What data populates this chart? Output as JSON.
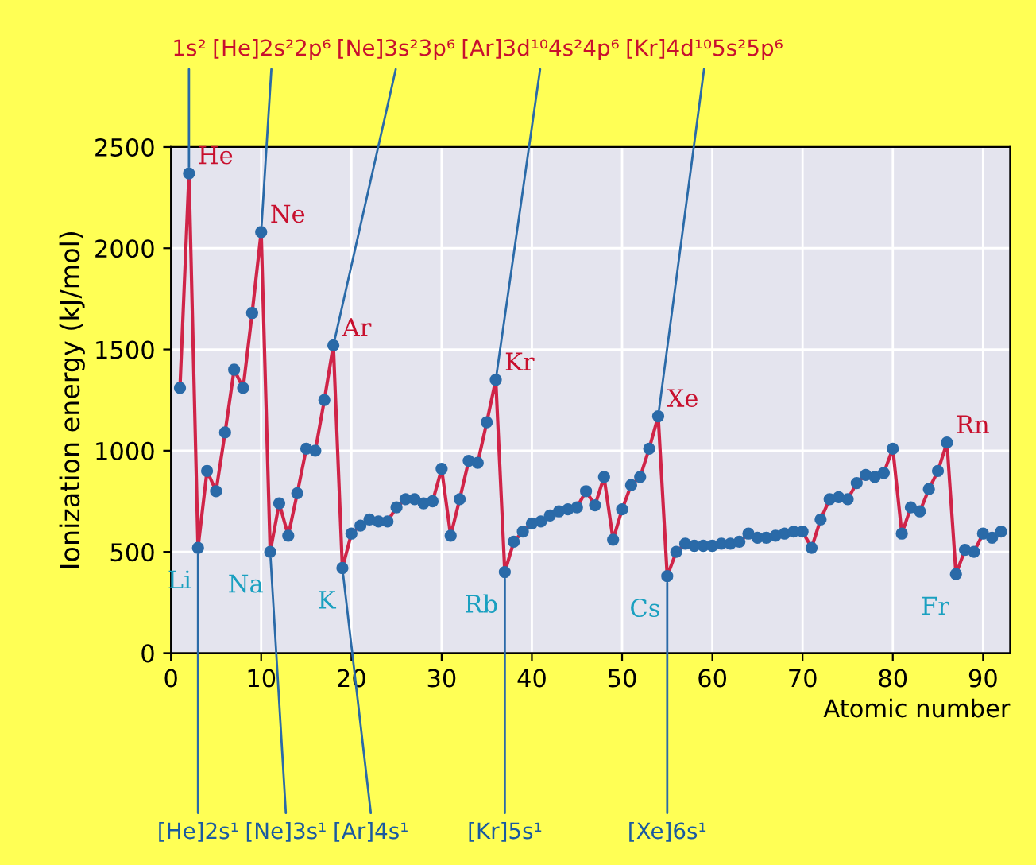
{
  "chart_data": {
    "type": "line",
    "xlabel": "Atomic number",
    "ylabel": "Ionization energy (kJ/mol)",
    "x": [
      1,
      2,
      3,
      4,
      5,
      6,
      7,
      8,
      9,
      10,
      11,
      12,
      13,
      14,
      15,
      16,
      17,
      18,
      19,
      20,
      21,
      22,
      23,
      24,
      25,
      26,
      27,
      28,
      29,
      30,
      31,
      32,
      33,
      34,
      35,
      36,
      37,
      38,
      39,
      40,
      41,
      42,
      43,
      44,
      45,
      46,
      47,
      48,
      49,
      50,
      51,
      52,
      53,
      54,
      55,
      56,
      57,
      58,
      59,
      60,
      61,
      62,
      63,
      64,
      65,
      66,
      67,
      68,
      69,
      70,
      71,
      72,
      73,
      74,
      75,
      76,
      77,
      78,
      79,
      80,
      81,
      82,
      83,
      84,
      85,
      86,
      87,
      88,
      89,
      90,
      91,
      92
    ],
    "series": [
      {
        "color": "#d02448",
        "values": [
          1310,
          2370,
          520,
          900,
          800,
          1090,
          1400,
          1310,
          1680,
          2080,
          500,
          740,
          580,
          790,
          1010,
          1000,
          1250,
          1520,
          420,
          590,
          630,
          660,
          650,
          650,
          720,
          760,
          760,
          740,
          750,
          910,
          580,
          760,
          950,
          940,
          1140,
          1350,
          400,
          550,
          600,
          640,
          650,
          680,
          700,
          710,
          720,
          800,
          730,
          870,
          560,
          710,
          830,
          870,
          1010,
          1170,
          380,
          500,
          540,
          530,
          530,
          530,
          540,
          540,
          550,
          590,
          570,
          570,
          580,
          590,
          600,
          600,
          520,
          660,
          760,
          770,
          760,
          840,
          880,
          870,
          890,
          1010,
          590,
          720,
          700,
          810,
          900,
          1040,
          390,
          510,
          500,
          590,
          570,
          600
        ]
      }
    ],
    "marker": "circle",
    "line_style": "solid",
    "grid": true,
    "xlim": [
      0,
      93
    ],
    "xticks": [
      0,
      10,
      20,
      30,
      40,
      50,
      60,
      70,
      80,
      90
    ],
    "ylim": [
      0,
      2500
    ],
    "yticks": [
      0,
      500,
      1000,
      1500,
      2000,
      2500
    ],
    "annotations": [
      {
        "text": "He",
        "x": 2,
        "y": 2370
      },
      {
        "text": "1s²",
        "x": 2,
        "y": 2370
      },
      {
        "text": "Ne",
        "x": 10,
        "y": 2080
      },
      {
        "text": "[He]2s²2p⁶",
        "x": 10,
        "y": 2080
      },
      {
        "text": "Ar",
        "x": 18,
        "y": 1520
      },
      {
        "text": "[Ne]3s²3p⁶",
        "x": 18,
        "y": 1520
      },
      {
        "text": "Kr",
        "x": 36,
        "y": 1350
      },
      {
        "text": "[Ar]3d¹⁰4s²4p⁶",
        "x": 36,
        "y": 1350
      },
      {
        "text": "Xe",
        "x": 54,
        "y": 1170
      },
      {
        "text": "[Kr]4d¹⁰5s²5p⁶",
        "x": 54,
        "y": 1170
      },
      {
        "text": "Rn",
        "x": 86,
        "y": 1040
      },
      {
        "text": "Li",
        "x": 3,
        "y": 520
      },
      {
        "text": "[He]2s¹",
        "x": 3,
        "y": 520
      },
      {
        "text": "Na",
        "x": 11,
        "y": 500
      },
      {
        "text": "[Ne]3s¹",
        "x": 11,
        "y": 500
      },
      {
        "text": "K",
        "x": 19,
        "y": 420
      },
      {
        "text": "[Ar]4s¹",
        "x": 19,
        "y": 420
      },
      {
        "text": "Rb",
        "x": 37,
        "y": 400
      },
      {
        "text": "[Kr]5s¹",
        "x": 37,
        "y": 400
      },
      {
        "text": "Cs",
        "x": 55,
        "y": 380
      },
      {
        "text": "[Xe]6s¹",
        "x": 55,
        "y": 380
      },
      {
        "text": "Fr",
        "x": 87,
        "y": 390
      }
    ]
  }
}
